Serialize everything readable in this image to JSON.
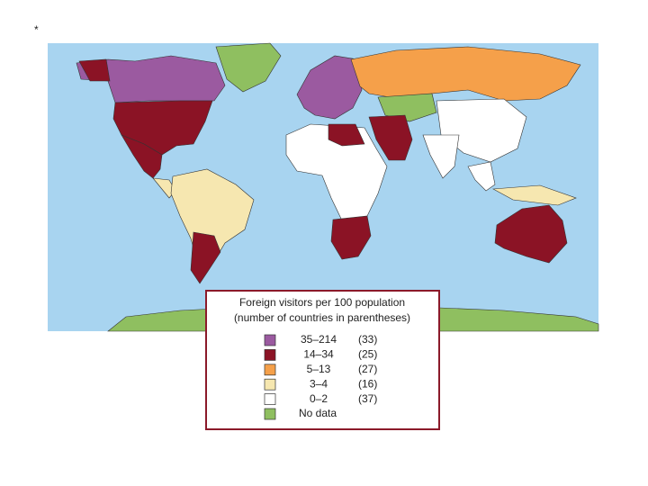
{
  "marker": "*",
  "legend": {
    "title": [
      "Foreign visitors per 100 population",
      "(number of countries in parentheses)"
    ],
    "items": [
      {
        "range": "35–214",
        "count": "(33)",
        "color": "#9b5aa0"
      },
      {
        "range": "14–34",
        "count": "(25)",
        "color": "#8b1325"
      },
      {
        "range": "5–13",
        "count": "(27)",
        "color": "#f5a04a"
      },
      {
        "range": "3–4",
        "count": "(16)",
        "color": "#f6e7b0"
      },
      {
        "range": "0–2",
        "count": "(37)",
        "color": "#ffffff"
      },
      {
        "range": "No data",
        "color": "#8fbf60"
      }
    ]
  }
}
